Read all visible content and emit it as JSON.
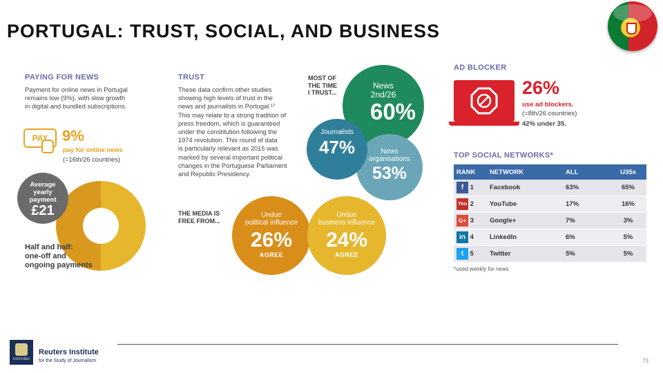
{
  "title": "PORTUGAL: TRUST, SOCIAL, AND BUSINESS",
  "paying": {
    "heading": "PAYING FOR NEWS",
    "lines": [
      "Payment for online news in Portugal",
      "remains low (9%), with slow growth",
      "in digital and bundled subscriptions."
    ],
    "pay_icon_label": "PAY",
    "percent": "9%",
    "percent_label": "pay for online news",
    "rank": "(=16th/26 countries)",
    "avg_lines": [
      "Average",
      "yearly",
      "payment"
    ],
    "avg_value": "£21",
    "half_lines": [
      "Half and half:",
      "one-off and",
      "ongoing payments"
    ],
    "donut_split": 0.5
  },
  "trust": {
    "heading": "TRUST",
    "lines": [
      "These data confirm other studies",
      "showing high levels of trust in the",
      "news and journalists in Portugal.¹⁷",
      "This may relate to a strong tradition of",
      "press freedom, which is guaranteed",
      "under the constitution following the",
      "1974 revolution. This round of data",
      "is particularly relevant as 2015 was",
      "marked by several important political",
      "changes in the Portuguese Parliament",
      "and Republic Presidency."
    ],
    "most_lines": [
      "MOST OF",
      "THE TIME",
      "I TRUST..."
    ],
    "news_label": "News",
    "news_rank": "2nd/26",
    "news_value": "60%",
    "journalists_label": "Journalists",
    "journalists_value": "47%",
    "orgs_lines": [
      "News",
      "organisations"
    ],
    "orgs_value": "53%",
    "free_lines": [
      "THE MEDIA IS",
      "FREE FROM..."
    ],
    "political_lines": [
      "Undue",
      "political influence"
    ],
    "political_value": "26%",
    "business_lines": [
      "Undue",
      "business influence"
    ],
    "business_value": "24%",
    "agree": "AGREE"
  },
  "adblock": {
    "heading": "AD BLOCKER",
    "value": "26%",
    "lines": [
      "use ad blockers.",
      "(=8th/26 countries)",
      "42% under 35."
    ]
  },
  "social": {
    "heading": "TOP SOCIAL NETWORKS*",
    "columns": [
      "RANK",
      "NETWORK",
      "ALL",
      "U35s"
    ],
    "rows": [
      {
        "icon": "f",
        "rank": "1",
        "network": "Facebook",
        "all": "63%",
        "u35": "65%"
      },
      {
        "icon": "You",
        "rank": "2",
        "network": "YouTube",
        "all": "17%",
        "u35": "16%"
      },
      {
        "icon": "G+",
        "rank": "3",
        "network": "Google+",
        "all": "7%",
        "u35": "3%"
      },
      {
        "icon": "in",
        "rank": "4",
        "network": "LinkedIn",
        "all": "6%",
        "u35": "5%"
      },
      {
        "icon": "t",
        "rank": "5",
        "network": "Twitter",
        "all": "5%",
        "u35": "5%"
      }
    ],
    "footnote": "*used weekly for news"
  },
  "footer": {
    "logo_word": "OXFORD",
    "org_name": "Reuters Institute",
    "org_sub": "for the Study of Journalism",
    "page": "73"
  },
  "colors": {
    "purple_heading": "#6a6aa8",
    "green": "#1f8a5c",
    "teal": "#2f7f9a",
    "light_teal": "#6aa6b8",
    "orange": "#d98e1a",
    "gold": "#e6b62d",
    "red": "#d9222b",
    "table_header": "#3b6aa8"
  }
}
